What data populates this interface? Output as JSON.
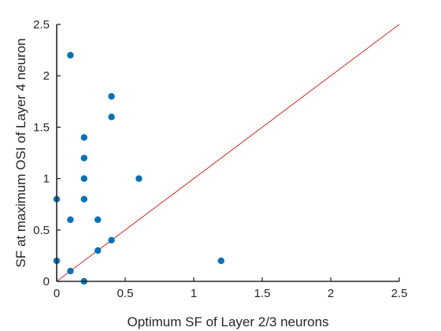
{
  "chart_data": {
    "type": "scatter",
    "title": "",
    "xlabel": "Optimum SF of Layer 2/3 neurons",
    "ylabel": "SF at maximum OSI of Layer 4 neuron",
    "xlim": [
      0,
      2.5
    ],
    "ylim": [
      0,
      2.5
    ],
    "xticks": [
      0,
      0.5,
      1,
      1.5,
      2,
      2.5
    ],
    "yticks": [
      0,
      0.5,
      1,
      1.5,
      2,
      2.5
    ],
    "xtick_labels": [
      "0",
      "0.5",
      "1",
      "1.5",
      "2",
      "2.5"
    ],
    "ytick_labels": [
      "0",
      "0.5",
      "1",
      "1.5",
      "2",
      "2.5"
    ],
    "grid": false,
    "colors": {
      "points": "#0072BD",
      "reference_line": "#D62728",
      "axes": "#262626"
    },
    "reference_line": {
      "x": [
        0,
        2.5
      ],
      "y": [
        0,
        2.5
      ]
    },
    "points": [
      {
        "x": 0.1,
        "y": 2.2
      },
      {
        "x": 0.4,
        "y": 1.8
      },
      {
        "x": 0.4,
        "y": 1.6
      },
      {
        "x": 0.2,
        "y": 1.4
      },
      {
        "x": 0.2,
        "y": 1.2
      },
      {
        "x": 0.2,
        "y": 1.0
      },
      {
        "x": 0.6,
        "y": 1.0
      },
      {
        "x": 0.0,
        "y": 0.8
      },
      {
        "x": 0.2,
        "y": 0.8
      },
      {
        "x": 0.1,
        "y": 0.6
      },
      {
        "x": 0.3,
        "y": 0.6
      },
      {
        "x": 0.4,
        "y": 0.4
      },
      {
        "x": 0.3,
        "y": 0.3
      },
      {
        "x": 0.0,
        "y": 0.2
      },
      {
        "x": 1.2,
        "y": 0.2
      },
      {
        "x": 0.1,
        "y": 0.1
      },
      {
        "x": 0.2,
        "y": 0.0
      }
    ]
  }
}
